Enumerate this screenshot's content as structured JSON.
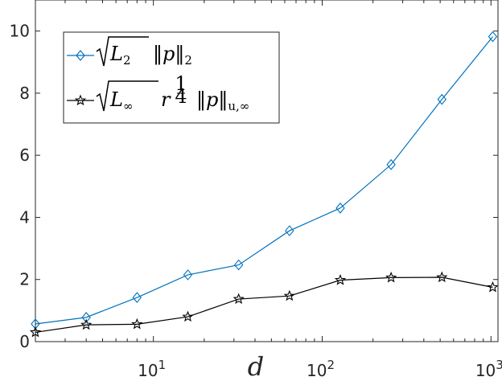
{
  "chart_data": {
    "type": "line",
    "title": "",
    "xlabel": "d",
    "ylabel": "",
    "xscale": "log",
    "xlim": [
      2,
      1100
    ],
    "ylim": [
      0,
      11
    ],
    "grid": false,
    "legend_position": "top-left",
    "x": [
      2,
      4,
      8,
      16,
      32,
      64,
      128,
      256,
      512,
      1024
    ],
    "x_ticks": [
      {
        "value": 10,
        "base": "10",
        "exp": "1"
      },
      {
        "value": 100,
        "base": "10",
        "exp": "2"
      },
      {
        "value": 1000,
        "base": "10",
        "exp": "3"
      }
    ],
    "y_ticks": [
      0,
      2,
      4,
      6,
      8,
      10
    ],
    "series": [
      {
        "name": "√L₂‖p‖₂",
        "color": "#0072BD",
        "marker": "diamond",
        "values": [
          0.57,
          0.78,
          1.42,
          2.15,
          2.47,
          3.57,
          4.3,
          5.7,
          7.8,
          9.82
        ]
      },
      {
        "name": "√L∞ r^(1/4) ‖p‖u,∞",
        "color": "#000000",
        "marker": "star",
        "values": [
          0.3,
          0.54,
          0.56,
          0.8,
          1.37,
          1.47,
          1.98,
          2.06,
          2.07,
          1.75
        ]
      }
    ]
  },
  "legend": {
    "s1": {
      "sqrt_arg": "L",
      "sqrt_sub": "2",
      "norm_var": "p",
      "norm_sub": "2"
    },
    "s2": {
      "sqrt_arg": "L",
      "sqrt_sub": "∞",
      "r": "r",
      "exp_num": "1",
      "exp_den": "4",
      "norm_var": "p",
      "norm_sub": "u,∞"
    }
  }
}
